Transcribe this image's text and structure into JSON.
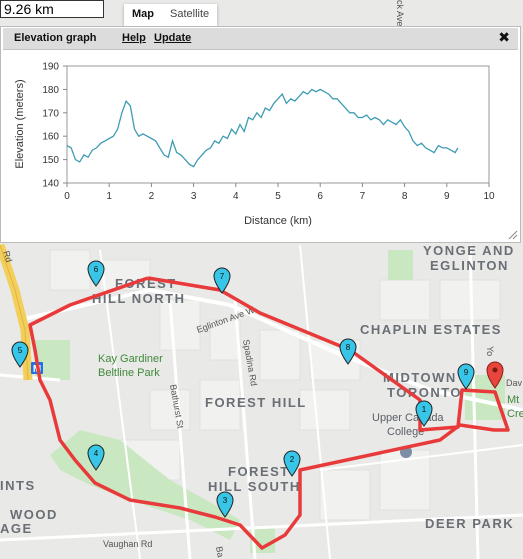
{
  "distance_display": "9.26 km",
  "map_types": [
    "Map",
    "Satellite"
  ],
  "active_map_type": "Map",
  "panel": {
    "title": "Elevation graph",
    "help": "Help",
    "update": "Update",
    "close_icon": "close-icon"
  },
  "chart_data": {
    "type": "line",
    "title": "",
    "xlabel": "Distance (km)",
    "ylabel": "Elevation (meters)",
    "xlim": [
      0,
      10
    ],
    "ylim": [
      140,
      190
    ],
    "xticks": [
      "0",
      "1",
      "2",
      "3",
      "4",
      "5",
      "6",
      "7",
      "8",
      "9",
      "10"
    ],
    "yticks": [
      "190",
      "180",
      "170",
      "160",
      "150",
      "140"
    ],
    "grid": false,
    "series": [
      {
        "color": "#3d9cb3",
        "x": [
          0,
          0.1,
          0.2,
          0.3,
          0.4,
          0.5,
          0.6,
          0.7,
          0.8,
          0.9,
          1.0,
          1.1,
          1.2,
          1.3,
          1.4,
          1.5,
          1.6,
          1.7,
          1.8,
          1.9,
          2.0,
          2.1,
          2.2,
          2.3,
          2.4,
          2.5,
          2.6,
          2.7,
          2.8,
          2.9,
          3.0,
          3.1,
          3.2,
          3.3,
          3.4,
          3.5,
          3.6,
          3.7,
          3.8,
          3.9,
          4.0,
          4.1,
          4.2,
          4.3,
          4.4,
          4.5,
          4.6,
          4.7,
          4.8,
          4.9,
          5.0,
          5.1,
          5.2,
          5.3,
          5.4,
          5.5,
          5.6,
          5.7,
          5.8,
          5.9,
          6.0,
          6.1,
          6.2,
          6.3,
          6.4,
          6.5,
          6.6,
          6.7,
          6.8,
          6.9,
          7.0,
          7.1,
          7.2,
          7.3,
          7.4,
          7.5,
          7.6,
          7.7,
          7.8,
          7.9,
          8.0,
          8.1,
          8.2,
          8.3,
          8.4,
          8.5,
          8.6,
          8.7,
          8.8,
          8.9,
          9.0,
          9.1,
          9.2,
          9.26
        ],
        "y": [
          156,
          155,
          150,
          149,
          152,
          151,
          154,
          155,
          157,
          158,
          159,
          160,
          163,
          170,
          175,
          173,
          163,
          160,
          161,
          160,
          159,
          158,
          155,
          152,
          151,
          158,
          153,
          152,
          150,
          148,
          147,
          150,
          152,
          154,
          155,
          158,
          157,
          160,
          159,
          163,
          161,
          165,
          162,
          168,
          167,
          170,
          168,
          172,
          171,
          174,
          176,
          178,
          174,
          176,
          175,
          177,
          179,
          178,
          180,
          179,
          180,
          179,
          178,
          176,
          176,
          174,
          172,
          170,
          170,
          168,
          168,
          169,
          167,
          168,
          167,
          165,
          167,
          166,
          165,
          167,
          164,
          162,
          158,
          156,
          157,
          155,
          154,
          153,
          156,
          155,
          155,
          154,
          153,
          155
        ]
      }
    ]
  },
  "map": {
    "labels": [
      "FOREST",
      "HILL NORTH",
      "Kay Gardiner",
      "Beltline Park",
      "FOREST HILL",
      "MIDTOWN",
      "TORONTO",
      "CHAPLIN ESTATES",
      "YONGE AND",
      "EGLINTON",
      "Upper Canada",
      "College",
      "FOREST",
      "HILL SOUTH",
      "DEER PARK",
      "Eglinton Ave W",
      "Spadina Rd",
      "Bathurst St",
      "Vaughan Rd",
      "WOOD",
      "AGE",
      "INTS",
      "Rd",
      "Dav",
      "Mt",
      "Cre",
      "Yo",
      "Ba",
      "ck Ave"
    ],
    "markers": [
      "1",
      "2",
      "3",
      "4",
      "5",
      "6",
      "7",
      "8",
      "9"
    ],
    "metro_icon": "M"
  }
}
